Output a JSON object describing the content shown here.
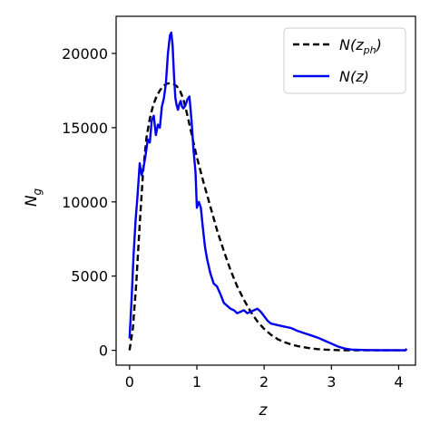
{
  "chart_data": {
    "type": "line",
    "xlabel": "z",
    "ylabel_main": "N",
    "ylabel_sub": "g",
    "xlim": [
      -0.2,
      4.25
    ],
    "ylim": [
      -1000,
      22500
    ],
    "xticks": [
      0,
      1,
      2,
      3,
      4
    ],
    "yticks": [
      0,
      5000,
      10000,
      15000,
      20000
    ],
    "grid": false,
    "legend_position": "top-right",
    "legend": [
      {
        "main": "N(z",
        "sub": "ph",
        "tail": ")"
      },
      {
        "main": "N(z)",
        "sub": "",
        "tail": ""
      }
    ],
    "series": [
      {
        "style": "dashed",
        "color": "#000000",
        "x": [
          0.0,
          0.05,
          0.1,
          0.15,
          0.2,
          0.25,
          0.3,
          0.35,
          0.4,
          0.45,
          0.5,
          0.55,
          0.6,
          0.65,
          0.7,
          0.75,
          0.8,
          0.85,
          0.9,
          0.95,
          1.0,
          1.1,
          1.2,
          1.3,
          1.4,
          1.5,
          1.6,
          1.7,
          1.8,
          1.9,
          2.0,
          2.1,
          2.2,
          2.3,
          2.4,
          2.5,
          2.6,
          2.7,
          2.8,
          2.9,
          3.0,
          3.1,
          3.2,
          3.3,
          3.5,
          3.7,
          3.9,
          4.1
        ],
        "values": [
          0,
          1500,
          4500,
          8500,
          12000,
          14300,
          15600,
          16500,
          17100,
          17500,
          17800,
          17950,
          18000,
          17950,
          17800,
          17500,
          16900,
          16000,
          15000,
          14000,
          13000,
          11300,
          9700,
          8100,
          6700,
          5400,
          4300,
          3400,
          2600,
          1950,
          1450,
          1050,
          750,
          550,
          400,
          280,
          200,
          130,
          80,
          50,
          30,
          15,
          8,
          5,
          2,
          1,
          0,
          0
        ]
      },
      {
        "style": "solid",
        "color": "#0000ee",
        "x": [
          0.0,
          0.03,
          0.06,
          0.09,
          0.12,
          0.15,
          0.18,
          0.21,
          0.24,
          0.27,
          0.3,
          0.33,
          0.36,
          0.39,
          0.42,
          0.45,
          0.48,
          0.51,
          0.54,
          0.57,
          0.6,
          0.62,
          0.64,
          0.66,
          0.68,
          0.7,
          0.72,
          0.74,
          0.76,
          0.78,
          0.8,
          0.83,
          0.86,
          0.89,
          0.92,
          0.95,
          0.98,
          1.0,
          1.03,
          1.06,
          1.09,
          1.12,
          1.15,
          1.2,
          1.25,
          1.3,
          1.35,
          1.4,
          1.45,
          1.5,
          1.55,
          1.6,
          1.65,
          1.7,
          1.75,
          1.8,
          1.85,
          1.9,
          1.95,
          2.0,
          2.05,
          2.1,
          2.2,
          2.3,
          2.4,
          2.5,
          2.6,
          2.7,
          2.8,
          2.9,
          3.0,
          3.1,
          3.2,
          3.3,
          3.5,
          3.7,
          3.9,
          4.1,
          4.12
        ],
        "values": [
          800,
          3500,
          6500,
          8800,
          10500,
          12600,
          11800,
          12400,
          13200,
          14200,
          14000,
          15500,
          15800,
          14500,
          15200,
          15000,
          16400,
          17000,
          18000,
          20000,
          21200,
          21400,
          20500,
          18500,
          17000,
          16500,
          16200,
          16600,
          16800,
          16400,
          16300,
          16500,
          16900,
          17100,
          15500,
          13500,
          12000,
          9600,
          10000,
          9600,
          8200,
          7000,
          6200,
          5200,
          4500,
          4300,
          3800,
          3200,
          3000,
          2800,
          2700,
          2500,
          2600,
          2700,
          2500,
          2600,
          2700,
          2800,
          2600,
          2300,
          2000,
          1800,
          1700,
          1600,
          1500,
          1300,
          1150,
          1000,
          850,
          650,
          450,
          250,
          120,
          50,
          20,
          10,
          5,
          0,
          100
        ]
      }
    ]
  }
}
